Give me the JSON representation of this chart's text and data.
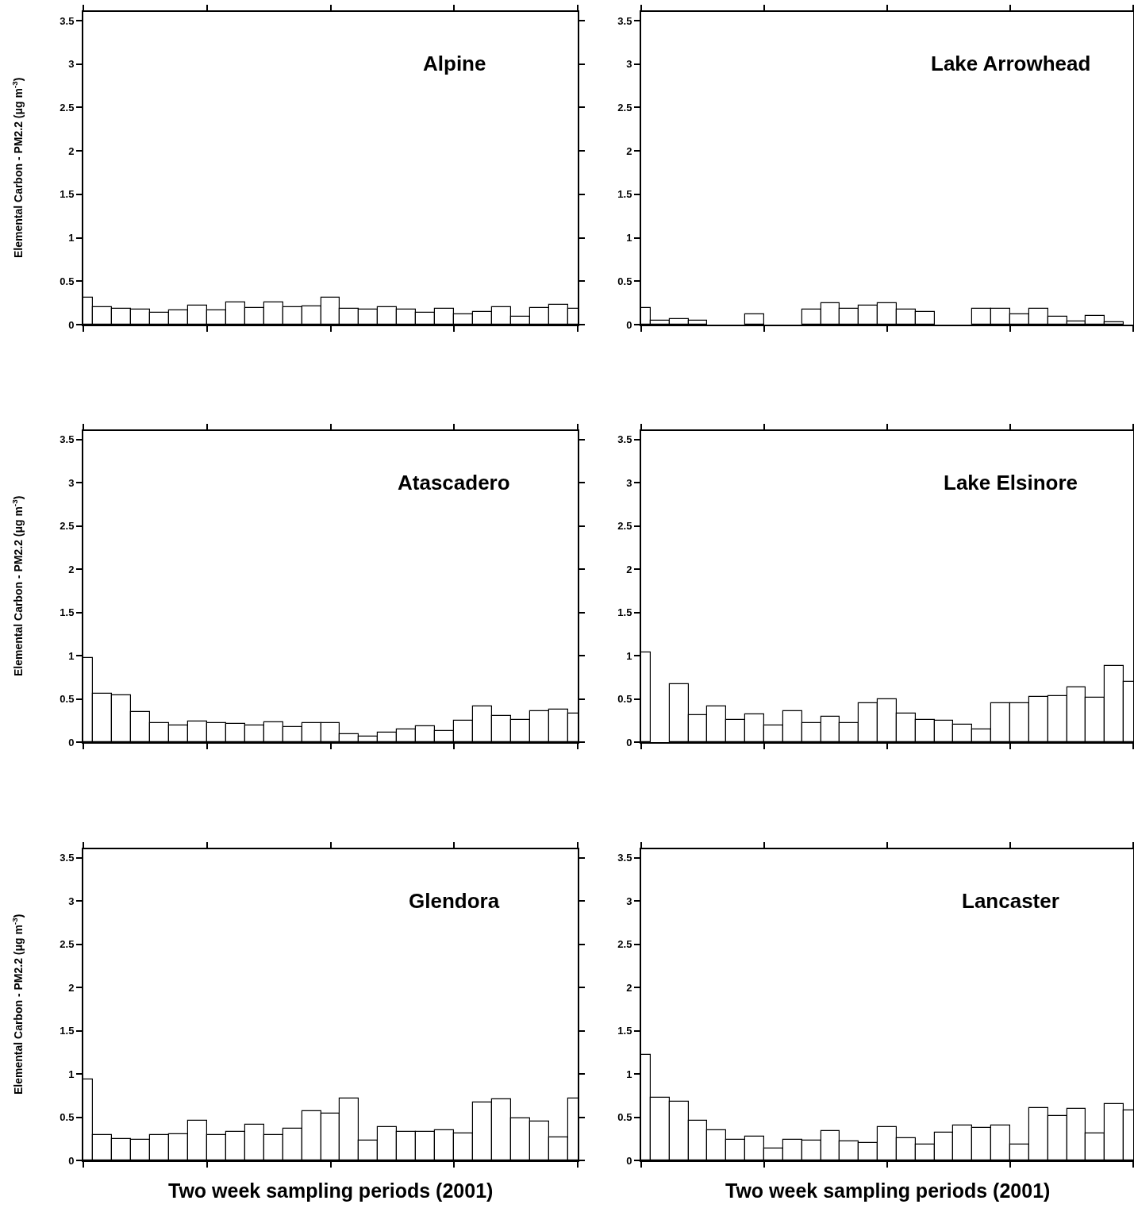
{
  "chart_data": [
    {
      "type": "bar",
      "title": "Alpine",
      "ylabel": "Elemental Carbon - PM2.2 (μg m$^{-3}$)",
      "categories": [
        null,
        null,
        null,
        null,
        null,
        null,
        null,
        null,
        null,
        null,
        null,
        null,
        null,
        null,
        null,
        null,
        null,
        null,
        null,
        null,
        null,
        null,
        null,
        null,
        null,
        null,
        null
      ],
      "values": [
        0.31,
        0.2,
        0.18,
        0.17,
        0.14,
        0.16,
        0.22,
        0.16,
        0.26,
        0.19,
        0.26,
        0.2,
        0.21,
        0.31,
        0.18,
        0.17,
        0.2,
        0.17,
        0.14,
        0.18,
        0.12,
        0.15,
        0.2,
        0.09,
        0.19,
        0.23,
        0.18
      ],
      "color": "#ffffff",
      "ylim": [
        0,
        3.6
      ],
      "yticks": [
        0,
        0.5,
        1,
        1.5,
        2,
        2.5,
        3,
        3.5
      ],
      "tick_labels": "y"
    },
    {
      "type": "bar",
      "title": "Lake Arrowhead",
      "categories": [
        null,
        null,
        null,
        null,
        null,
        null,
        null,
        null,
        null,
        null,
        null,
        null,
        null,
        null,
        null,
        null,
        null,
        null,
        null,
        null,
        null,
        null,
        null,
        null,
        null,
        null,
        null
      ],
      "values": [
        0.19,
        0.05,
        0.06,
        0.05,
        null,
        null,
        0.12,
        null,
        null,
        0.17,
        0.25,
        0.18,
        0.22,
        0.25,
        0.17,
        0.15,
        null,
        null,
        0.18,
        0.18,
        0.12,
        0.18,
        0.09,
        0.04,
        0.1,
        0.03,
        null
      ],
      "color": "#ffffff",
      "ylim": [
        0,
        3.6
      ],
      "yticks": [
        0,
        0.5,
        1,
        1.5,
        2,
        2.5,
        3,
        3.5
      ],
      "tick_labels": "y"
    },
    {
      "type": "bar",
      "title": "Atascadero",
      "ylabel": "Elemental Carbon - PM2.2 (μg m$^{-3}$)",
      "categories": [
        null,
        null,
        null,
        null,
        null,
        null,
        null,
        null,
        null,
        null,
        null,
        null,
        null,
        null,
        null,
        null,
        null,
        null,
        null,
        null,
        null,
        null,
        null,
        null,
        null,
        null,
        null
      ],
      "values": [
        0.97,
        0.56,
        0.54,
        0.35,
        0.22,
        0.19,
        0.24,
        0.22,
        0.21,
        0.19,
        0.23,
        0.17,
        0.22,
        0.22,
        0.09,
        0.06,
        0.11,
        0.15,
        0.18,
        0.13,
        0.25,
        0.41,
        0.3,
        0.26,
        0.36,
        0.38,
        0.33
      ],
      "color": "#ffffff",
      "ylim": [
        0,
        3.6
      ],
      "yticks": [
        0,
        0.5,
        1,
        1.5,
        2,
        2.5,
        3,
        3.5
      ],
      "tick_labels": "y"
    },
    {
      "type": "bar",
      "title": "Lake Elsinore",
      "categories": [
        null,
        null,
        null,
        null,
        null,
        null,
        null,
        null,
        null,
        null,
        null,
        null,
        null,
        null,
        null,
        null,
        null,
        null,
        null,
        null,
        null,
        null,
        null,
        null,
        null,
        null,
        null
      ],
      "values": [
        1.04,
        null,
        0.67,
        0.31,
        0.41,
        0.26,
        0.32,
        0.19,
        0.36,
        0.22,
        0.29,
        0.22,
        0.45,
        0.5,
        0.33,
        0.26,
        0.25,
        0.2,
        0.15,
        0.45,
        0.45,
        0.52,
        0.53,
        0.63,
        0.51,
        0.88,
        0.7
      ],
      "color": "#ffffff",
      "ylim": [
        0,
        3.6
      ],
      "yticks": [
        0,
        0.5,
        1,
        1.5,
        2,
        2.5,
        3,
        3.5
      ],
      "tick_labels": "y"
    },
    {
      "type": "bar",
      "title": "Glendora",
      "ylabel": "Elemental Carbon - PM2.2 (μg m$^{-3}$)",
      "xlabel": "Two week sampling periods (2001)",
      "categories": [
        null,
        null,
        null,
        null,
        null,
        null,
        null,
        null,
        null,
        null,
        null,
        null,
        null,
        null,
        null,
        null,
        null,
        null,
        null,
        null,
        null,
        null,
        null,
        null,
        null,
        null,
        null
      ],
      "values": [
        0.94,
        0.29,
        0.25,
        0.24,
        0.29,
        0.3,
        0.46,
        0.29,
        0.33,
        0.41,
        0.29,
        0.37,
        0.57,
        0.54,
        0.72,
        0.23,
        0.39,
        0.33,
        0.33,
        0.35,
        0.31,
        0.67,
        0.71,
        0.49,
        0.45,
        0.27,
        0.72
      ],
      "color": "#ffffff",
      "ylim": [
        0,
        3.6
      ],
      "yticks": [
        0,
        0.5,
        1,
        1.5,
        2,
        2.5,
        3,
        3.5
      ],
      "tick_labels": "y"
    },
    {
      "type": "bar",
      "title": "Lancaster",
      "xlabel": "Two week sampling periods (2001)",
      "categories": [
        null,
        null,
        null,
        null,
        null,
        null,
        null,
        null,
        null,
        null,
        null,
        null,
        null,
        null,
        null,
        null,
        null,
        null,
        null,
        null,
        null,
        null,
        null,
        null,
        null,
        null,
        null
      ],
      "values": [
        1.22,
        0.73,
        0.68,
        0.46,
        0.35,
        0.24,
        0.28,
        0.14,
        0.24,
        0.23,
        0.34,
        0.22,
        0.2,
        0.39,
        0.26,
        0.18,
        0.32,
        0.4,
        0.38,
        0.4,
        0.18,
        0.61,
        0.51,
        0.6,
        0.31,
        0.65,
        0.58
      ],
      "color": "#ffffff",
      "ylim": [
        0,
        3.6
      ],
      "yticks": [
        0,
        0.5,
        1,
        1.5,
        2,
        2.5,
        3,
        3.5
      ],
      "tick_labels": "y"
    }
  ]
}
